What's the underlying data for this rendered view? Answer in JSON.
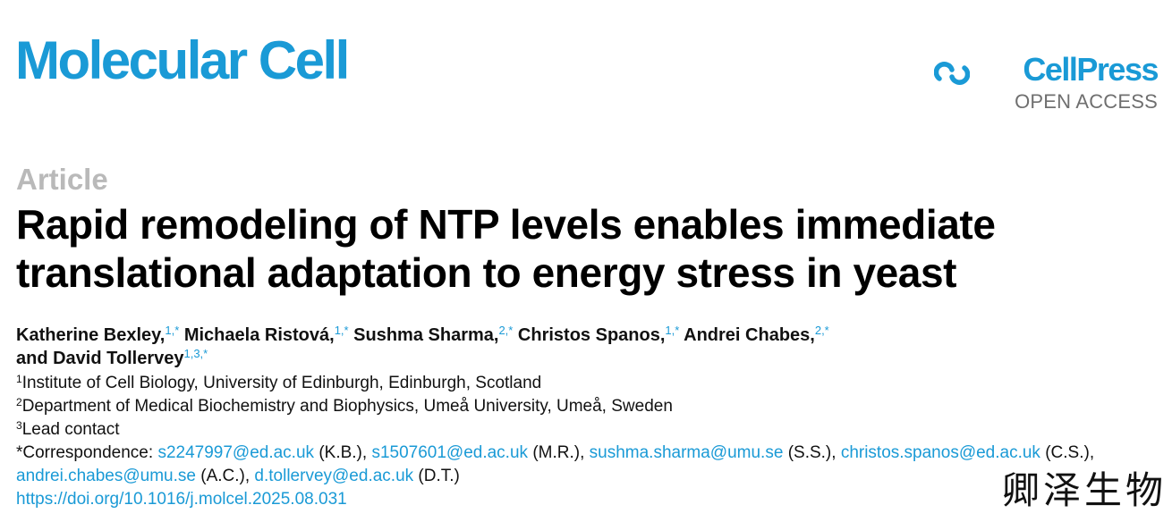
{
  "header": {
    "journal": "Molecular Cell",
    "publisher": "CellPress",
    "access": "OPEN ACCESS",
    "publisher_logo_icon": "cellpress-swirl-icon",
    "accent_color": "#1a9ad6"
  },
  "article": {
    "type": "Article",
    "title": "Rapid remodeling of NTP levels enables immediate translational adaptation to energy stress in yeast"
  },
  "authors": [
    {
      "name": "Katherine Bexley,",
      "marks": "1,*"
    },
    {
      "name": "Michaela Ristová,",
      "marks": "1,*"
    },
    {
      "name": "Sushma Sharma,",
      "marks": "2,*"
    },
    {
      "name": "Christos Spanos,",
      "marks": "1,*"
    },
    {
      "name": "Andrei Chabes,",
      "marks": "2,*"
    },
    {
      "name": "and David Tollervey",
      "marks": "1,3,*"
    }
  ],
  "affiliations": [
    {
      "num": "1",
      "text": "Institute of Cell Biology, University of Edinburgh, Edinburgh, Scotland"
    },
    {
      "num": "2",
      "text": "Department of Medical Biochemistry and Biophysics, Umeå University, Umeå, Sweden"
    },
    {
      "num": "3",
      "text": "Lead contact"
    }
  ],
  "correspondence": {
    "label": "*Correspondence:",
    "contacts": [
      {
        "email": "s2247997@ed.ac.uk",
        "initials": "(K.B.),"
      },
      {
        "email": "s1507601@ed.ac.uk",
        "initials": "(M.R.),"
      },
      {
        "email": "sushma.sharma@umu.se",
        "initials": "(S.S.),"
      },
      {
        "email": "christos.spanos@ed.ac.uk",
        "initials": "(C.S.),"
      },
      {
        "email": "andrei.chabes@umu.se",
        "initials": "(A.C.),"
      },
      {
        "email": "d.tollervey@ed.ac.uk",
        "initials": "(D.T.)"
      }
    ]
  },
  "doi": "https://doi.org/10.1016/j.molcel.2025.08.031",
  "watermark": "卿泽生物"
}
